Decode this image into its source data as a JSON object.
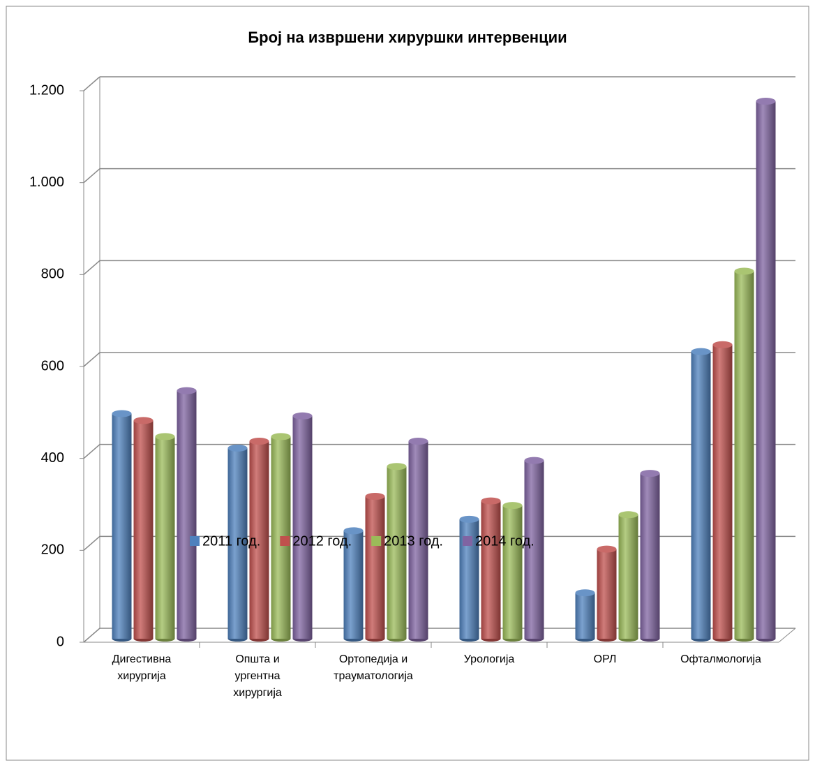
{
  "chart_data": {
    "type": "bar",
    "title": "Број на извршени хируршки интервенции",
    "categories": [
      "Дигестивна хирургија",
      "Општа и ургентна хирургија",
      "Ортопедија и трауматологија",
      "Урологија",
      "ОРЛ",
      "Офталмологија"
    ],
    "series": [
      {
        "name": "2011 год.",
        "color": "#4f81bd",
        "values": [
          490,
          415,
          235,
          260,
          100,
          625
        ]
      },
      {
        "name": "2012 год.",
        "color": "#c0504d",
        "values": [
          475,
          430,
          310,
          300,
          195,
          640
        ]
      },
      {
        "name": "2013 год.",
        "color": "#9bbb59",
        "values": [
          440,
          440,
          375,
          290,
          270,
          800
        ]
      },
      {
        "name": "2014 год.",
        "color": "#8064a2",
        "values": [
          540,
          485,
          430,
          388,
          360,
          1170
        ]
      }
    ],
    "ylim": [
      0,
      1200
    ],
    "yticks": [
      0,
      200,
      400,
      600,
      800,
      {
        "value": 1000,
        "label": "1.000"
      },
      {
        "value": 1200,
        "label": "1.200"
      }
    ],
    "grid": true,
    "legend": "bottom"
  }
}
